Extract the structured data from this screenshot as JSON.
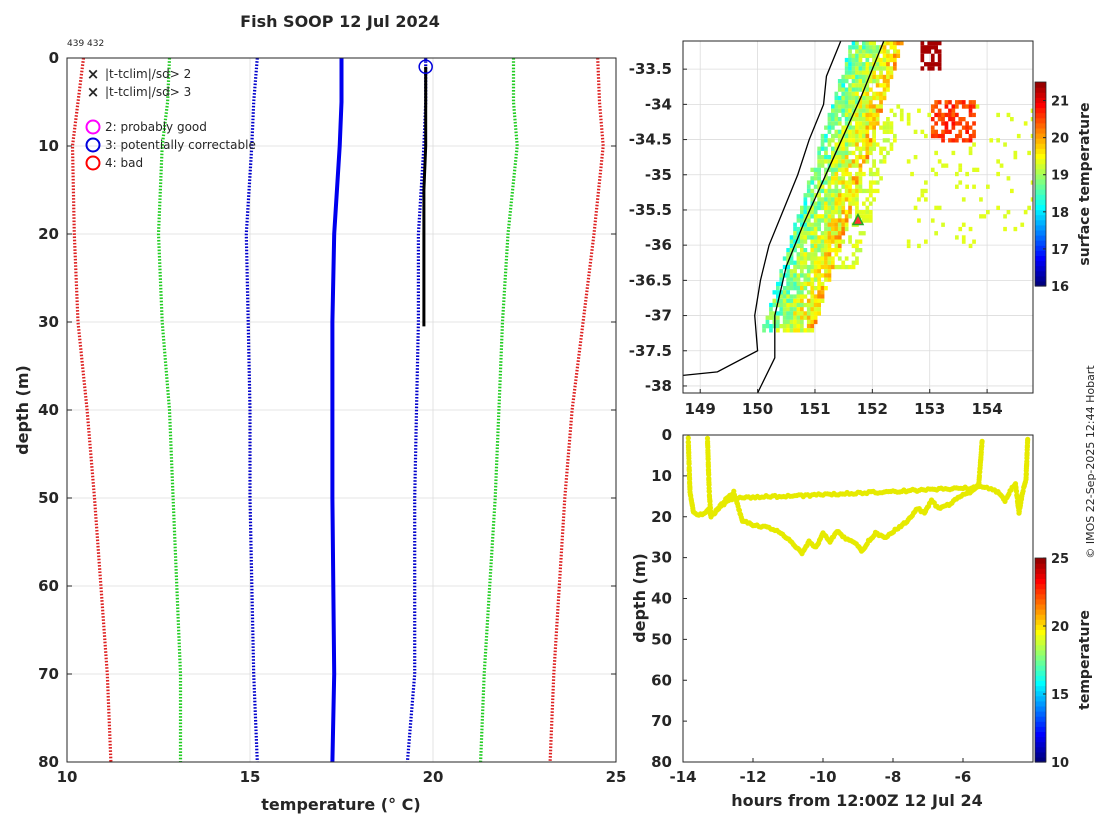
{
  "header": {
    "title": "Fish SOOP 12 Jul 2024",
    "id_label": "439 432"
  },
  "credit": "© IMOS 22-Sep-2025 12:44 Hobart",
  "chart_data": [
    {
      "type": "line",
      "name": "profile",
      "xlabel": "temperature (° C)",
      "ylabel": "depth (m)",
      "xlim": [
        10,
        25
      ],
      "ylim": [
        0,
        80
      ],
      "xticks": [
        10,
        15,
        20,
        25
      ],
      "yticks": [
        0,
        10,
        20,
        30,
        40,
        50,
        60,
        70,
        80
      ],
      "legend": {
        "x_items": [
          {
            "label": "|t-tclim|/sd> 2",
            "color": "#00dd00"
          },
          {
            "label": "|t-tclim|/sd> 3",
            "color": "#ff0000"
          }
        ],
        "o_items": [
          {
            "label": "2: probably good",
            "color": "#ff00ff"
          },
          {
            "label": "3: potentially correctable",
            "color": "#0000dd"
          },
          {
            "label": "4: bad",
            "color": "#ff0000"
          }
        ]
      },
      "series": [
        {
          "name": "clim_mean",
          "color": "#0000ee",
          "style": "solid",
          "temp": [
            17.5,
            17.5,
            17.45,
            17.3,
            17.25,
            17.25,
            17.25,
            17.3,
            17.25
          ],
          "depth": [
            0,
            5,
            10,
            20,
            30,
            40,
            50,
            70,
            80
          ]
        },
        {
          "name": "minus_1sd",
          "color": "#0000cc",
          "style": "dotted",
          "temp": [
            15.2,
            15.1,
            15.05,
            14.9,
            14.95,
            15.0,
            15.0,
            15.1,
            15.2
          ],
          "depth": [
            0,
            5,
            10,
            20,
            30,
            40,
            50,
            70,
            80
          ]
        },
        {
          "name": "plus_1sd",
          "color": "#0000cc",
          "style": "dotted",
          "temp": [
            19.8,
            19.8,
            19.75,
            19.6,
            19.6,
            19.55,
            19.5,
            19.5,
            19.3
          ],
          "depth": [
            0,
            5,
            10,
            20,
            30,
            40,
            50,
            70,
            80
          ]
        },
        {
          "name": "minus_2sd",
          "color": "#22cc22",
          "style": "dotted",
          "temp": [
            12.8,
            12.75,
            12.6,
            12.5,
            12.6,
            12.8,
            12.9,
            13.1,
            13.1
          ],
          "depth": [
            0,
            5,
            10,
            20,
            30,
            40,
            50,
            70,
            80
          ]
        },
        {
          "name": "plus_2sd",
          "color": "#22cc22",
          "style": "dotted",
          "temp": [
            22.2,
            22.2,
            22.3,
            22.05,
            21.9,
            21.8,
            21.7,
            21.4,
            21.3
          ],
          "depth": [
            0,
            5,
            10,
            20,
            30,
            40,
            50,
            70,
            80
          ]
        },
        {
          "name": "minus_3sd",
          "color": "#dd2222",
          "style": "dotted",
          "temp": [
            10.45,
            10.3,
            10.15,
            10.2,
            10.3,
            10.55,
            10.75,
            11.1,
            11.2
          ],
          "depth": [
            0,
            5,
            10,
            20,
            30,
            40,
            50,
            70,
            80
          ]
        },
        {
          "name": "plus_3sd",
          "color": "#dd2222",
          "style": "dotted",
          "temp": [
            24.5,
            24.55,
            24.65,
            24.4,
            24.1,
            23.8,
            23.6,
            23.3,
            23.2
          ],
          "depth": [
            0,
            5,
            10,
            20,
            30,
            40,
            50,
            70,
            80
          ]
        },
        {
          "name": "observed",
          "color": "#000000",
          "style": "solid",
          "temp": [
            19.8,
            19.8,
            19.8,
            19.75,
            19.75,
            19.75
          ],
          "depth": [
            1,
            5,
            10,
            15,
            20,
            30.5
          ]
        }
      ],
      "markers": [
        {
          "label": "3: potentially correctable",
          "temp": 19.8,
          "depth": 1,
          "color": "#0000dd"
        }
      ]
    },
    {
      "type": "heatmap",
      "name": "sst_map",
      "xlim": [
        148.7,
        154.8
      ],
      "ylim": [
        -38.1,
        -33.1
      ],
      "xticks": [
        149,
        150,
        151,
        152,
        153,
        154
      ],
      "xtick_labels": [
        "149",
        "150",
        "151",
        "152",
        "153",
        "154"
      ],
      "yticks": [
        -33.5,
        -34,
        -34.5,
        -35,
        -35.5,
        -36,
        -36.5,
        -37,
        -37.5,
        -38
      ],
      "ytick_labels": [
        "-33.5",
        "-34",
        "-34.5",
        "-35",
        "-35.5",
        "-36",
        "-36.5",
        "-37",
        "-37.5",
        "-38"
      ],
      "colorbar": {
        "label": "surface temperature",
        "min": 16,
        "max": 21.5,
        "ticks": [
          16,
          17,
          18,
          19,
          20,
          21
        ],
        "tick_labels": [
          "16",
          "17",
          "18",
          "19",
          "20",
          "21"
        ]
      },
      "station": {
        "lon": 151.75,
        "lat": -35.65
      }
    },
    {
      "type": "scatter",
      "name": "depth_time",
      "xlabel": "hours from 12:00Z 12 Jul 24",
      "ylabel": "depth (m)",
      "xlim": [
        -14,
        -4
      ],
      "ylim": [
        0,
        80
      ],
      "xticks": [
        -14,
        -12,
        -10,
        -8,
        -6
      ],
      "xtick_labels": [
        "-14",
        "-12",
        "-10",
        "-8",
        "-6"
      ],
      "yticks": [
        0,
        10,
        20,
        30,
        40,
        50,
        60,
        70,
        80
      ],
      "point_color": "#e6ea00",
      "colorbar": {
        "label": "temperature",
        "min": 10,
        "max": 25,
        "ticks": [
          10,
          15,
          20,
          25
        ],
        "tick_labels": [
          "10",
          "15",
          "20",
          "25"
        ]
      },
      "tracks": [
        {
          "hours": [
            -13.85,
            -13.8,
            -13.7,
            -13.5,
            -13.35,
            -13.25,
            -13.2,
            -13.1,
            -12.9,
            -12.7,
            -12.55,
            -12.3,
            -12.0,
            -11.6,
            -11.2,
            -10.8,
            -10.6,
            -10.4,
            -10.2,
            -10.0,
            -9.8,
            -9.6,
            -9.4,
            -9.2,
            -9.0,
            -8.9,
            -8.7,
            -8.5,
            -8.2,
            -7.9,
            -7.6,
            -7.3,
            -7.1,
            -6.9,
            -6.7,
            -6.4,
            -6.1,
            -5.8,
            -5.55,
            -5.45
          ],
          "depth": [
            1,
            14,
            19,
            19.5,
            19,
            18,
            20,
            19,
            17,
            15,
            14,
            21,
            22,
            22.5,
            24,
            27,
            29,
            26,
            27.5,
            24,
            26,
            23.5,
            25,
            26,
            27,
            28.5,
            26,
            24,
            25,
            23,
            21,
            18,
            19,
            16,
            18,
            17,
            15,
            14,
            12,
            1
          ]
        },
        {
          "hours": [
            -13.3,
            -13.25,
            -13.2,
            -13.0,
            -12.7,
            -12.5,
            -12.0,
            -11.5,
            -11.0,
            -10.5,
            -10.0,
            -9.5,
            -9.0,
            -8.5,
            -8.0,
            -7.5,
            -7.0,
            -6.5,
            -6.0,
            -5.5,
            -5.2,
            -5.0,
            -4.8,
            -4.6,
            -4.5,
            -4.4,
            -4.3,
            -4.2,
            -4.15
          ],
          "depth": [
            1,
            14,
            20,
            18,
            16,
            15.5,
            15.2,
            15,
            15,
            14.8,
            14.6,
            14.4,
            14.2,
            14,
            13.8,
            13.6,
            13.4,
            13.2,
            13,
            12.8,
            13,
            14,
            16,
            13,
            12,
            19,
            14,
            11,
            0.5
          ]
        }
      ]
    }
  ]
}
